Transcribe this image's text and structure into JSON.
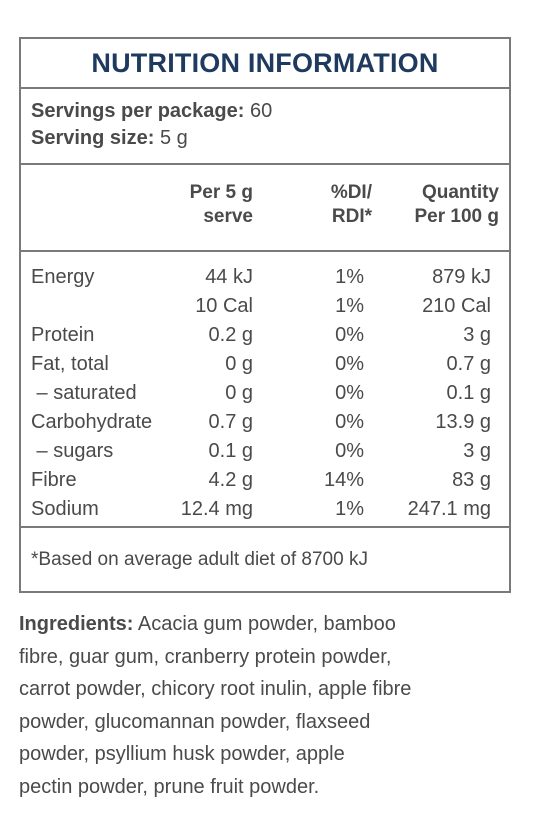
{
  "panel": {
    "title": "NUTRITION INFORMATION",
    "servings_per_package_label": "Servings per package:",
    "servings_per_package_value": "60",
    "serving_size_label": "Serving size:",
    "serving_size_value": "5 g",
    "columns": {
      "per_serve_line1": "Per 5 g",
      "per_serve_line2": "serve",
      "di_line1": "%DI/",
      "di_line2": "RDI*",
      "qty_line1": "Quantity",
      "qty_line2": "Per 100 g"
    },
    "rows": [
      {
        "label": "Energy",
        "per_serve": "44 kJ",
        "di": "1%",
        "per_100g": "879 kJ"
      },
      {
        "label": "",
        "per_serve": "10 Cal",
        "di": "1%",
        "per_100g": "210 Cal"
      },
      {
        "label": "Protein",
        "per_serve": "0.2 g",
        "di": "0%",
        "per_100g": "3 g"
      },
      {
        "label": "Fat, total",
        "per_serve": "0 g",
        "di": "0%",
        "per_100g": "0.7 g"
      },
      {
        "label": " – saturated",
        "per_serve": "0 g",
        "di": "0%",
        "per_100g": "0.1 g"
      },
      {
        "label": "Carbohydrate",
        "per_serve": "0.7 g",
        "di": "0%",
        "per_100g": "13.9 g"
      },
      {
        "label": " – sugars",
        "per_serve": "0.1 g",
        "di": "0%",
        "per_100g": "3 g"
      },
      {
        "label": "Fibre",
        "per_serve": "4.2 g",
        "di": "14%",
        "per_100g": "83 g"
      },
      {
        "label": "Sodium",
        "per_serve": "12.4 mg",
        "di": "1%",
        "per_100g": "247.1 mg"
      }
    ],
    "footnote": "*Based on average adult diet of 8700 kJ"
  },
  "ingredients": {
    "label": "Ingredients:",
    "lines": [
      " Acacia gum powder, bamboo",
      "fibre, guar gum, cranberry protein powder,",
      "carrot powder, chicory root inulin, apple fibre",
      "powder, glucomannan powder, flaxseed",
      "powder, psyllium husk powder, apple",
      "pectin powder, prune fruit powder."
    ]
  }
}
